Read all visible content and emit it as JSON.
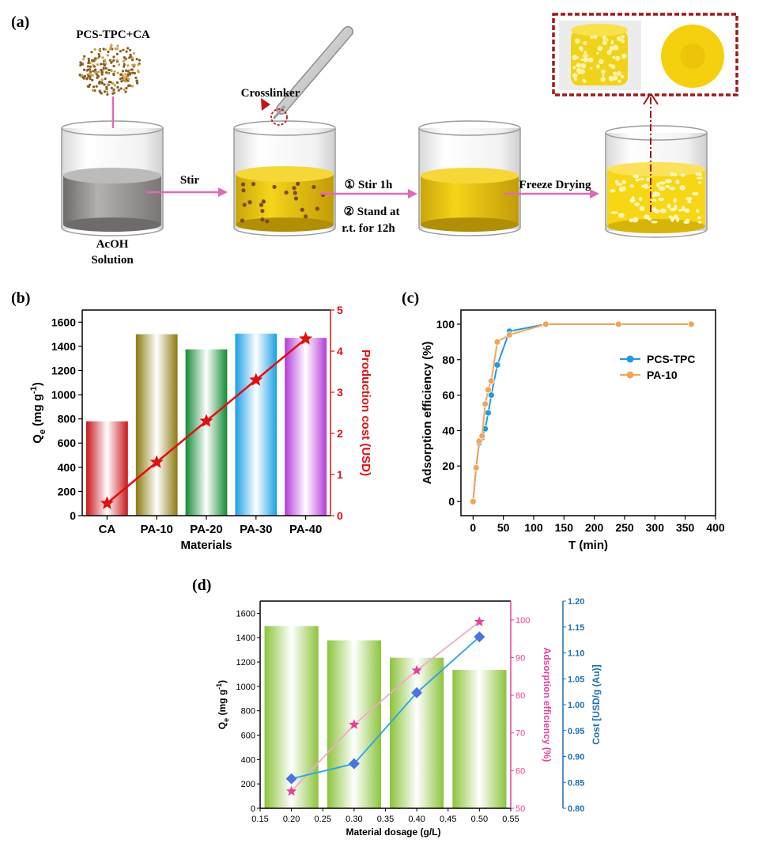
{
  "panel_a": {
    "label": "(a)",
    "step_texts": {
      "reagent": "PCS-TPC+CA",
      "crosslinker": "Crosslinker",
      "stir": "Stir",
      "stir_1h": "① Stir 1h",
      "stand_line1": "② Stand at",
      "stand_line2": "r.t. for 12h",
      "freeze": "Freeze Drying",
      "acoh_line1": "AcOH",
      "acoh_line2": "Solution"
    },
    "colors": {
      "solution_gray": "#9a9696",
      "yellow": "#f2cc12",
      "dot": "#7a4a1c",
      "arrow": "#e06ab6",
      "frame": "#a01818"
    }
  },
  "chart_data": [
    {
      "panel": "(b)",
      "type": "bar",
      "categories": [
        "CA",
        "PA-10",
        "PA-20",
        "PA-30",
        "PA-40"
      ],
      "values": [
        780,
        1500,
        1375,
        1505,
        1470
      ],
      "bar_colors": [
        "#c8161b",
        "#8a7a10",
        "#138a35",
        "#1aa0e6",
        "#b53ad8"
      ],
      "secondary_series": {
        "values": [
          0.3,
          1.3,
          2.3,
          3.3,
          4.3
        ],
        "color": "#e01010",
        "marker": "star"
      },
      "xlabel": "Materials",
      "ylabel": "Q_e (mg g^-1)",
      "ylabel_main": "Q",
      "ylabel_sub": "e",
      "ylabel_rest": " (mg g",
      "ylabel_sup": "-1",
      "ylabel_close": ")",
      "y2label": "Production cost (USD)",
      "ylim": [
        0,
        1700
      ],
      "yticks": [
        0,
        200,
        400,
        600,
        800,
        1000,
        1200,
        1400,
        1600
      ],
      "y2lim": [
        0,
        5
      ],
      "y2ticks": [
        0,
        1,
        2,
        3,
        4,
        5
      ]
    },
    {
      "panel": "(c)",
      "type": "line",
      "series": [
        {
          "name": "PCS-TPC",
          "color": "#1e9be0",
          "x": [
            0,
            5,
            10,
            15,
            20,
            25,
            30,
            40,
            60,
            120,
            240,
            360
          ],
          "y": [
            0,
            19,
            33,
            36,
            41,
            50,
            60,
            77,
            96,
            100,
            100,
            100
          ]
        },
        {
          "name": "PA-10",
          "color": "#f3a45a",
          "x": [
            0,
            5,
            10,
            15,
            20,
            25,
            30,
            40,
            60,
            120,
            240,
            360
          ],
          "y": [
            0,
            19,
            34,
            37,
            55,
            63,
            68,
            90,
            94,
            100,
            100,
            100
          ]
        }
      ],
      "xlabel": "T (min)",
      "ylabel": "Adsorption efficiency (%)",
      "xlim": [
        -20,
        400
      ],
      "ylim": [
        -8,
        108
      ],
      "xticks": [
        0,
        50,
        100,
        150,
        200,
        250,
        300,
        350,
        400
      ],
      "yticks": [
        0,
        20,
        40,
        60,
        80,
        100
      ]
    },
    {
      "panel": "(d)",
      "type": "bar",
      "categories": [
        0.2,
        0.3,
        0.4,
        0.5
      ],
      "values": [
        1495,
        1378,
        1235,
        1135
      ],
      "bar_color": "#8cc43c",
      "series": [
        {
          "name": "Adsorption efficiency",
          "axis": "y2",
          "color": "#e83f9b",
          "marker": "star",
          "values": [
            54.5,
            72.2,
            86.6,
            99.5
          ]
        },
        {
          "name": "Cost",
          "axis": "y3",
          "color": "#1e7fd6",
          "marker": "diamond",
          "values": [
            0.857,
            0.886,
            1.023,
            1.131
          ]
        }
      ],
      "xlabel": "Material dosage (g/L)",
      "ylabel_main": "Q",
      "ylabel_sub": "e",
      "ylabel_rest": " (mg g",
      "ylabel_sup": "-1",
      "ylabel_close": ")",
      "y2label": "Adsorption efficiency (%)",
      "y3label": "Cost [USD/g (Au)]",
      "xlim": [
        0.15,
        0.55
      ],
      "xticks": [
        "0.15",
        "0.20",
        "0.25",
        "0.30",
        "0.35",
        "0.40",
        "0.45",
        "0.50",
        "0.55"
      ],
      "ylim": [
        0,
        1700
      ],
      "yticks": [
        0,
        200,
        400,
        600,
        800,
        1000,
        1200,
        1400,
        1600
      ],
      "y2lim": [
        50,
        105
      ],
      "y2ticks": [
        50,
        60,
        70,
        80,
        90,
        100
      ],
      "y3lim": [
        0.8,
        1.2
      ],
      "y3ticks": [
        "0.80",
        "0.85",
        "0.90",
        "0.95",
        "1.00",
        "1.05",
        "1.10",
        "1.15",
        "1.20"
      ]
    }
  ]
}
